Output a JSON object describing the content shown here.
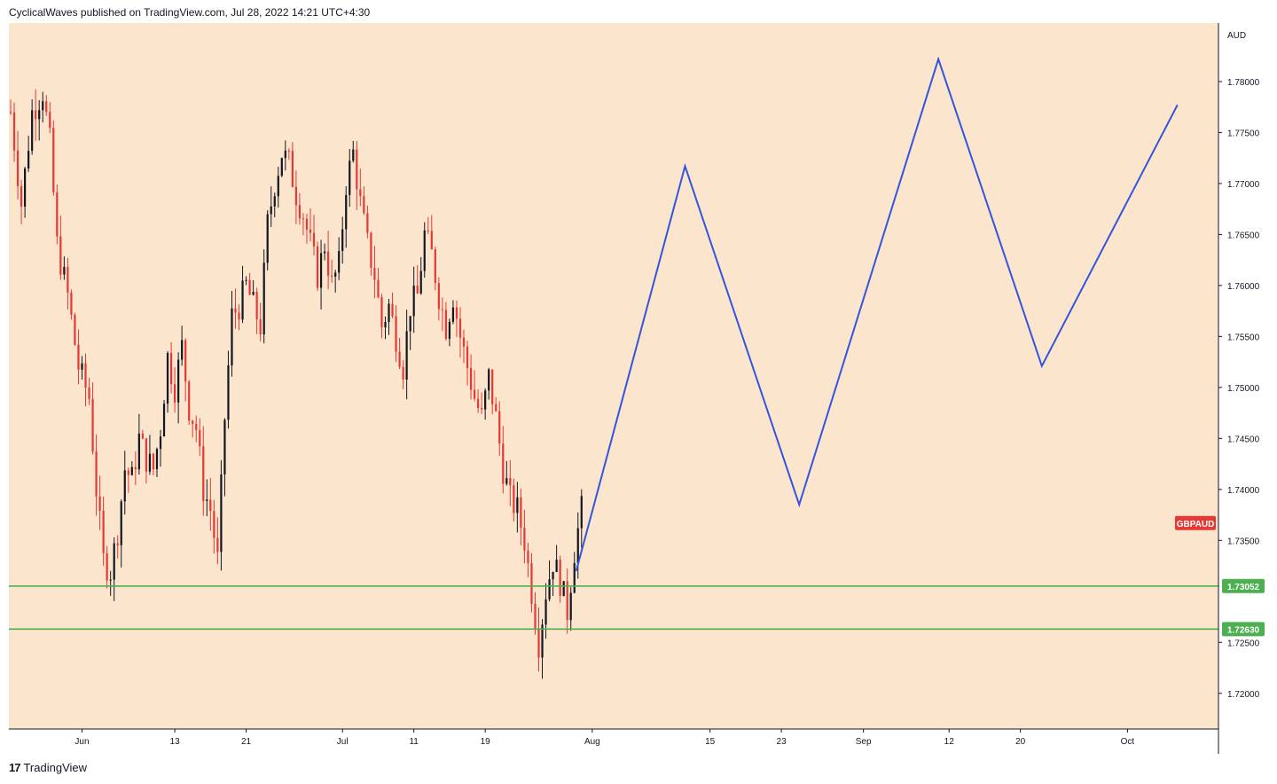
{
  "header": {
    "text": "CyclicalWaves published on TradingView.com, Jul 28, 2022 14:21 UTC+4:30"
  },
  "footer": {
    "brand": "TradingView",
    "logo_text": "17"
  },
  "chart_data": {
    "type": "candlestick",
    "symbol_label": "GBPAUD",
    "currency": "AUD",
    "ylim": [
      1.7165,
      1.7853
    ],
    "y_ticks": [
      "1.78000",
      "1.77500",
      "1.77000",
      "1.76500",
      "1.76000",
      "1.75500",
      "1.75000",
      "1.74500",
      "1.74000",
      "1.73500",
      "1.72500",
      "1.72000"
    ],
    "x_ticks": [
      {
        "label": "Jun",
        "index": 20
      },
      {
        "label": "13",
        "index": 46
      },
      {
        "label": "21",
        "index": 66
      },
      {
        "label": "Jul",
        "index": 93
      },
      {
        "label": "11",
        "index": 113
      },
      {
        "label": "19",
        "index": 133
      },
      {
        "label": "Aug",
        "index": 163
      },
      {
        "label": "15",
        "index": 196
      },
      {
        "label": "23",
        "index": 216
      },
      {
        "label": "Sep",
        "index": 239
      },
      {
        "label": "12",
        "index": 263
      },
      {
        "label": "20",
        "index": 283
      },
      {
        "label": "Oct",
        "index": 313
      }
    ],
    "x_bar_count": 339,
    "price_path": [
      [
        0,
        1.777
      ],
      [
        3,
        1.768
      ],
      [
        6,
        1.777
      ],
      [
        9,
        1.779
      ],
      [
        11,
        1.774
      ],
      [
        13,
        1.764
      ],
      [
        16,
        1.759
      ],
      [
        19,
        1.752
      ],
      [
        22,
        1.749
      ],
      [
        24,
        1.74
      ],
      [
        26,
        1.733
      ],
      [
        28,
        1.732
      ],
      [
        30,
        1.736
      ],
      [
        32,
        1.742
      ],
      [
        34,
        1.741
      ],
      [
        36,
        1.745
      ],
      [
        38,
        1.743
      ],
      [
        40,
        1.742
      ],
      [
        42,
        1.746
      ],
      [
        44,
        1.753
      ],
      [
        46,
        1.75
      ],
      [
        48,
        1.754
      ],
      [
        50,
        1.748
      ],
      [
        52,
        1.746
      ],
      [
        54,
        1.74
      ],
      [
        56,
        1.738
      ],
      [
        58,
        1.733
      ],
      [
        60,
        1.747
      ],
      [
        62,
        1.757
      ],
      [
        64,
        1.758
      ],
      [
        66,
        1.76
      ],
      [
        68,
        1.758
      ],
      [
        70,
        1.756
      ],
      [
        72,
        1.766
      ],
      [
        74,
        1.77
      ],
      [
        76,
        1.773
      ],
      [
        78,
        1.772
      ],
      [
        80,
        1.769
      ],
      [
        82,
        1.767
      ],
      [
        84,
        1.764
      ],
      [
        86,
        1.761
      ],
      [
        88,
        1.764
      ],
      [
        90,
        1.76
      ],
      [
        92,
        1.762
      ],
      [
        94,
        1.77
      ],
      [
        96,
        1.773
      ],
      [
        98,
        1.768
      ],
      [
        100,
        1.764
      ],
      [
        102,
        1.761
      ],
      [
        104,
        1.756
      ],
      [
        106,
        1.758
      ],
      [
        108,
        1.755
      ],
      [
        110,
        1.752
      ],
      [
        112,
        1.758
      ],
      [
        114,
        1.759
      ],
      [
        116,
        1.765
      ],
      [
        118,
        1.763
      ],
      [
        120,
        1.759
      ],
      [
        122,
        1.756
      ],
      [
        124,
        1.759
      ],
      [
        126,
        1.755
      ],
      [
        128,
        1.752
      ],
      [
        130,
        1.749
      ],
      [
        132,
        1.747
      ],
      [
        134,
        1.751
      ],
      [
        136,
        1.747
      ],
      [
        138,
        1.742
      ],
      [
        140,
        1.739
      ],
      [
        142,
        1.738
      ],
      [
        144,
        1.735
      ],
      [
        146,
        1.73
      ],
      [
        148,
        1.725
      ],
      [
        150,
        1.73
      ],
      [
        152,
        1.733
      ],
      [
        154,
        1.731
      ],
      [
        156,
        1.728
      ],
      [
        158,
        1.734
      ],
      [
        160,
        1.738
      ]
    ],
    "horizontal_levels": [
      {
        "value": 1.73052,
        "label": "1.73052",
        "color": "#4caf50"
      },
      {
        "value": 1.7263,
        "label": "1.72630",
        "color": "#4caf50"
      }
    ],
    "projection": {
      "color": "#3355dd",
      "points": [
        [
          158.5,
          1.732
        ],
        [
          189,
          1.7717
        ],
        [
          221,
          1.7385
        ],
        [
          260,
          1.7822
        ],
        [
          289,
          1.7521
        ],
        [
          327,
          1.7777
        ]
      ]
    },
    "symbol_price": 1.7367,
    "colors": {
      "bg": "#fbe5cd",
      "up": "#131722",
      "down": "#e53935",
      "symbol_badge": "#e53935"
    }
  }
}
